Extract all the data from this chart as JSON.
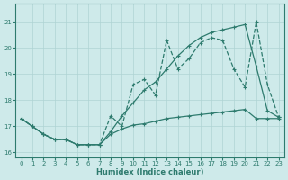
{
  "xlabel": "Humidex (Indice chaleur)",
  "bg_color": "#ceeaea",
  "grid_color": "#afd4d4",
  "line_color": "#2e7b6e",
  "xlim": [
    -0.5,
    23.5
  ],
  "ylim": [
    15.8,
    21.7
  ],
  "yticks": [
    16,
    17,
    18,
    19,
    20,
    21
  ],
  "xticks": [
    0,
    1,
    2,
    3,
    4,
    5,
    6,
    7,
    8,
    9,
    10,
    11,
    12,
    13,
    14,
    15,
    16,
    17,
    18,
    19,
    20,
    21,
    22,
    23
  ],
  "s1_x": [
    0,
    1,
    2,
    3,
    4,
    5,
    6,
    7,
    8,
    9,
    10,
    11,
    12,
    13,
    14,
    15,
    16,
    17,
    18,
    19,
    20,
    21,
    22,
    23
  ],
  "s1_y": [
    17.3,
    17.0,
    16.7,
    16.5,
    16.5,
    16.3,
    16.3,
    16.3,
    16.7,
    16.9,
    17.05,
    17.1,
    17.2,
    17.3,
    17.35,
    17.4,
    17.45,
    17.5,
    17.55,
    17.6,
    17.65,
    17.3,
    17.3,
    17.3
  ],
  "s2_x": [
    0,
    1,
    2,
    3,
    4,
    5,
    6,
    7,
    8,
    9,
    10,
    11,
    12,
    13,
    14,
    15,
    16,
    17,
    18,
    19,
    20,
    21,
    22,
    23
  ],
  "s2_y": [
    17.3,
    17.0,
    16.7,
    16.5,
    16.5,
    16.3,
    16.3,
    16.3,
    17.4,
    17.0,
    18.6,
    18.8,
    18.2,
    20.3,
    19.2,
    19.6,
    20.2,
    20.4,
    20.3,
    19.2,
    18.5,
    21.0,
    18.6,
    17.35
  ],
  "s3_x": [
    0,
    1,
    2,
    3,
    4,
    5,
    6,
    7,
    8,
    9,
    10,
    11,
    12,
    13,
    14,
    15,
    16,
    17,
    18,
    19,
    20,
    21,
    22,
    23
  ],
  "s3_y": [
    17.3,
    17.0,
    16.7,
    16.5,
    16.5,
    16.3,
    16.3,
    16.3,
    16.8,
    17.4,
    17.9,
    18.4,
    18.7,
    19.2,
    19.7,
    20.1,
    20.4,
    20.6,
    20.7,
    20.8,
    20.9,
    19.3,
    17.6,
    17.35
  ]
}
